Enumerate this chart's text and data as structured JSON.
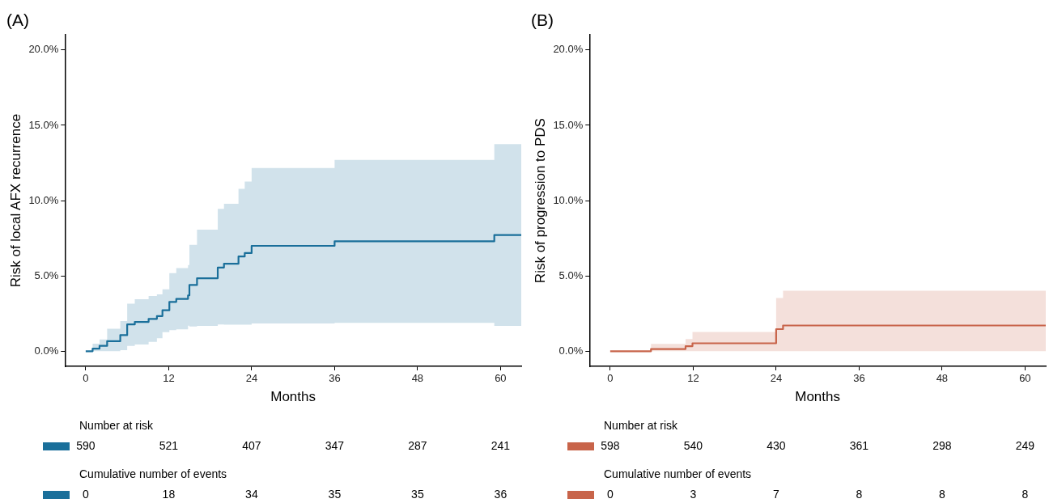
{
  "chart_data": [
    {
      "type": "step",
      "title": "(A)",
      "xlabel": "Months",
      "ylabel": "Risk of local AFX recurrence",
      "series": [
        {
          "color": "#1a6f9a",
          "x": [
            0,
            1,
            2,
            3.1,
            5,
            6,
            7.1,
            9.1,
            10.3,
            11.1,
            12.1,
            13.1,
            14.8,
            15,
            16.1,
            19.1,
            20,
            22.1,
            23,
            24,
            36,
            59.1,
            63
          ],
          "values": [
            0,
            0.17,
            0.36,
            0.67,
            1.07,
            1.78,
            1.95,
            2.15,
            2.34,
            2.72,
            3.28,
            3.48,
            3.71,
            4.4,
            4.85,
            5.56,
            5.81,
            6.29,
            6.52,
            7.0,
            7.3,
            7.72,
            7.72
          ],
          "lower": [
            0,
            0,
            0,
            0,
            0.07,
            0.36,
            0.45,
            0.62,
            0.86,
            1.27,
            1.4,
            1.46,
            1.7,
            1.65,
            1.69,
            1.78,
            1.76,
            1.76,
            1.76,
            1.84,
            1.89,
            1.69,
            1.69
          ],
          "upper": [
            0,
            0.5,
            0.79,
            1.5,
            2.0,
            3.16,
            3.46,
            3.67,
            3.78,
            4.12,
            5.19,
            5.52,
            5.73,
            7.06,
            8.07,
            9.46,
            9.79,
            10.79,
            11.27,
            12.17,
            12.7,
            13.75,
            13.75
          ]
        }
      ],
      "xlim": [
        -3,
        63
      ],
      "xticks": [
        0,
        12,
        24,
        36,
        48,
        60
      ],
      "ylim": [
        -1,
        21
      ],
      "yticks": [
        {
          "value": 0,
          "label": "0.0%"
        },
        {
          "value": 5,
          "label": "5.0%"
        },
        {
          "value": 10,
          "label": "10.0%"
        },
        {
          "value": 15,
          "label": "15.0%"
        },
        {
          "value": 20,
          "label": "20.0%"
        }
      ],
      "grid": false,
      "legend": false,
      "annotations": [
        "Number at risk",
        "590",
        "521",
        "407",
        "347",
        "287",
        "241",
        "Cumulative number of events",
        "0",
        "18",
        "34",
        "35",
        "35",
        "36"
      ]
    },
    {
      "type": "step",
      "title": "(B)",
      "xlabel": "Months",
      "ylabel": "Risk of progression to PDS",
      "series": [
        {
          "color": "#c8644a",
          "x": [
            0,
            5.9,
            10.9,
            11.9,
            24,
            25,
            63
          ],
          "values": [
            0,
            0.15,
            0.34,
            0.53,
            1.47,
            1.71,
            1.71
          ],
          "lower": [
            0,
            0,
            0,
            0,
            0,
            0,
            0
          ],
          "upper": [
            0,
            0.49,
            0.81,
            1.28,
            3.53,
            4.02,
            4.02
          ]
        }
      ],
      "xlim": [
        -3,
        63
      ],
      "xticks": [
        0,
        12,
        24,
        36,
        48,
        60
      ],
      "ylim": [
        -1,
        21
      ],
      "yticks": [
        {
          "value": 0,
          "label": "0.0%"
        },
        {
          "value": 5,
          "label": "5.0%"
        },
        {
          "value": 10,
          "label": "10.0%"
        },
        {
          "value": 15,
          "label": "15.0%"
        },
        {
          "value": 20,
          "label": "20.0%"
        }
      ],
      "grid": false,
      "legend": false,
      "annotations": [
        "Number at risk",
        "598",
        "540",
        "430",
        "361",
        "298",
        "249",
        "Cumulative number of events",
        "0",
        "3",
        "7",
        "8",
        "8",
        "8"
      ]
    }
  ]
}
